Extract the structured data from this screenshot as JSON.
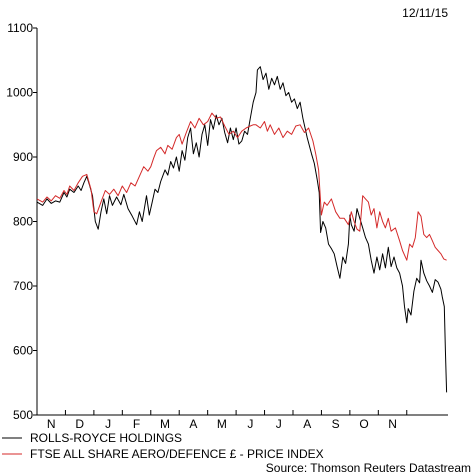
{
  "chart_data": {
    "type": "line",
    "date_label": "12/11/15",
    "source": "Source: Thomson Reuters Datastream",
    "x_tick_labels": [
      "N",
      "D",
      "J",
      "F",
      "M",
      "A",
      "M",
      "J",
      "J",
      "A",
      "S",
      "O",
      "N"
    ],
    "y_ticks": [
      500,
      600,
      700,
      800,
      900,
      1000,
      1100
    ],
    "ylim": [
      500,
      1100
    ],
    "grid": false,
    "legend_position": "bottom-left",
    "series": [
      {
        "name": "ROLLS-ROYCE HOLDINGS",
        "color": "#000000",
        "values": [
          [
            0.0,
            830
          ],
          [
            0.2,
            825
          ],
          [
            0.35,
            835
          ],
          [
            0.5,
            828
          ],
          [
            0.65,
            832
          ],
          [
            0.8,
            830
          ],
          [
            0.95,
            845
          ],
          [
            1.05,
            838
          ],
          [
            1.15,
            850
          ],
          [
            1.3,
            845
          ],
          [
            1.45,
            855
          ],
          [
            1.55,
            848
          ],
          [
            1.65,
            860
          ],
          [
            1.75,
            870
          ],
          [
            1.85,
            856
          ],
          [
            1.95,
            840
          ],
          [
            2.05,
            800
          ],
          [
            2.15,
            788
          ],
          [
            2.25,
            815
          ],
          [
            2.35,
            835
          ],
          [
            2.45,
            812
          ],
          [
            2.55,
            840
          ],
          [
            2.65,
            825
          ],
          [
            2.8,
            838
          ],
          [
            2.95,
            826
          ],
          [
            3.05,
            842
          ],
          [
            3.2,
            820
          ],
          [
            3.35,
            808
          ],
          [
            3.5,
            795
          ],
          [
            3.6,
            815
          ],
          [
            3.7,
            800
          ],
          [
            3.85,
            840
          ],
          [
            3.95,
            810
          ],
          [
            4.05,
            830
          ],
          [
            4.15,
            850
          ],
          [
            4.25,
            845
          ],
          [
            4.35,
            862
          ],
          [
            4.5,
            880
          ],
          [
            4.6,
            872
          ],
          [
            4.7,
            893
          ],
          [
            4.8,
            883
          ],
          [
            4.9,
            900
          ],
          [
            5.0,
            878
          ],
          [
            5.1,
            910
          ],
          [
            5.2,
            895
          ],
          [
            5.3,
            930
          ],
          [
            5.4,
            945
          ],
          [
            5.5,
            905
          ],
          [
            5.6,
            922
          ],
          [
            5.7,
            900
          ],
          [
            5.8,
            935
          ],
          [
            5.9,
            950
          ],
          [
            6.0,
            918
          ],
          [
            6.1,
            958
          ],
          [
            6.2,
            943
          ],
          [
            6.3,
            965
          ],
          [
            6.4,
            950
          ],
          [
            6.5,
            960
          ],
          [
            6.6,
            938
          ],
          [
            6.7,
            922
          ],
          [
            6.8,
            945
          ],
          [
            6.9,
            927
          ],
          [
            7.0,
            945
          ],
          [
            7.1,
            920
          ],
          [
            7.2,
            925
          ],
          [
            7.3,
            940
          ],
          [
            7.4,
            935
          ],
          [
            7.5,
            960
          ],
          [
            7.6,
            985
          ],
          [
            7.7,
            1000
          ],
          [
            7.75,
            1035
          ],
          [
            7.85,
            1040
          ],
          [
            7.95,
            1020
          ],
          [
            8.05,
            1030
          ],
          [
            8.15,
            1005
          ],
          [
            8.25,
            1022
          ],
          [
            8.35,
            1012
          ],
          [
            8.45,
            1025
          ],
          [
            8.55,
            1005
          ],
          [
            8.65,
            1015
          ],
          [
            8.75,
            995
          ],
          [
            8.85,
            1000
          ],
          [
            8.95,
            985
          ],
          [
            9.05,
            990
          ],
          [
            9.15,
            975
          ],
          [
            9.25,
            985
          ],
          [
            9.35,
            960
          ],
          [
            9.5,
            930
          ],
          [
            9.65,
            905
          ],
          [
            9.75,
            890
          ],
          [
            9.85,
            865
          ],
          [
            9.92,
            845
          ],
          [
            9.97,
            783
          ],
          [
            10.05,
            800
          ],
          [
            10.15,
            790
          ],
          [
            10.25,
            765
          ],
          [
            10.35,
            758
          ],
          [
            10.45,
            750
          ],
          [
            10.55,
            730
          ],
          [
            10.65,
            712
          ],
          [
            10.75,
            745
          ],
          [
            10.85,
            735
          ],
          [
            10.95,
            765
          ],
          [
            11.0,
            810
          ],
          [
            11.05,
            795
          ],
          [
            11.15,
            785
          ],
          [
            11.25,
            820
          ],
          [
            11.35,
            805
          ],
          [
            11.45,
            790
          ],
          [
            11.55,
            775
          ],
          [
            11.65,
            765
          ],
          [
            11.75,
            740
          ],
          [
            11.85,
            720
          ],
          [
            11.95,
            745
          ],
          [
            12.05,
            725
          ],
          [
            12.15,
            750
          ],
          [
            12.25,
            728
          ],
          [
            12.35,
            760
          ],
          [
            12.45,
            730
          ],
          [
            12.55,
            745
          ],
          [
            12.65,
            728
          ],
          [
            12.75,
            720
          ],
          [
            12.85,
            700
          ],
          [
            12.92,
            668
          ],
          [
            13.0,
            643
          ],
          [
            13.05,
            665
          ],
          [
            13.15,
            655
          ],
          [
            13.25,
            692
          ],
          [
            13.35,
            712
          ],
          [
            13.45,
            705
          ],
          [
            13.5,
            740
          ],
          [
            13.6,
            720
          ],
          [
            13.7,
            708
          ],
          [
            13.8,
            700
          ],
          [
            13.9,
            690
          ],
          [
            14.0,
            710
          ],
          [
            14.1,
            706
          ],
          [
            14.2,
            695
          ],
          [
            14.25,
            683
          ],
          [
            14.32,
            668
          ],
          [
            14.36,
            600
          ],
          [
            14.4,
            535
          ]
        ]
      },
      {
        "name": "FTSE ALL SHARE AERO/DEFENCE £ - PRICE INDEX",
        "color": "#d42a2a",
        "values": [
          [
            0.0,
            835
          ],
          [
            0.2,
            830
          ],
          [
            0.35,
            838
          ],
          [
            0.5,
            832
          ],
          [
            0.65,
            840
          ],
          [
            0.8,
            836
          ],
          [
            0.95,
            848
          ],
          [
            1.05,
            842
          ],
          [
            1.15,
            855
          ],
          [
            1.3,
            848
          ],
          [
            1.45,
            860
          ],
          [
            1.6,
            870
          ],
          [
            1.75,
            873
          ],
          [
            1.9,
            850
          ],
          [
            2.0,
            815
          ],
          [
            2.1,
            812
          ],
          [
            2.25,
            830
          ],
          [
            2.4,
            848
          ],
          [
            2.55,
            842
          ],
          [
            2.7,
            850
          ],
          [
            2.85,
            840
          ],
          [
            3.0,
            855
          ],
          [
            3.15,
            845
          ],
          [
            3.3,
            860
          ],
          [
            3.45,
            855
          ],
          [
            3.6,
            870
          ],
          [
            3.75,
            885
          ],
          [
            3.9,
            878
          ],
          [
            4.0,
            885
          ],
          [
            4.1,
            898
          ],
          [
            4.2,
            910
          ],
          [
            4.35,
            915
          ],
          [
            4.5,
            905
          ],
          [
            4.6,
            918
          ],
          [
            4.75,
            912
          ],
          [
            4.9,
            930
          ],
          [
            5.0,
            935
          ],
          [
            5.1,
            920
          ],
          [
            5.25,
            938
          ],
          [
            5.4,
            955
          ],
          [
            5.55,
            945
          ],
          [
            5.7,
            960
          ],
          [
            5.85,
            950
          ],
          [
            6.0,
            955
          ],
          [
            6.15,
            968
          ],
          [
            6.3,
            960
          ],
          [
            6.45,
            962
          ],
          [
            6.6,
            948
          ],
          [
            6.75,
            935
          ],
          [
            6.9,
            940
          ],
          [
            7.05,
            930
          ],
          [
            7.2,
            940
          ],
          [
            7.35,
            945
          ],
          [
            7.5,
            948
          ],
          [
            7.6,
            950
          ],
          [
            7.7,
            950
          ],
          [
            7.85,
            945
          ],
          [
            8.0,
            955
          ],
          [
            8.1,
            940
          ],
          [
            8.2,
            950
          ],
          [
            8.35,
            935
          ],
          [
            8.5,
            945
          ],
          [
            8.65,
            930
          ],
          [
            8.8,
            940
          ],
          [
            8.95,
            935
          ],
          [
            9.1,
            948
          ],
          [
            9.25,
            950
          ],
          [
            9.4,
            938
          ],
          [
            9.55,
            945
          ],
          [
            9.7,
            925
          ],
          [
            9.8,
            905
          ],
          [
            9.9,
            880
          ],
          [
            10.0,
            810
          ],
          [
            10.1,
            830
          ],
          [
            10.2,
            825
          ],
          [
            10.35,
            835
          ],
          [
            10.5,
            815
          ],
          [
            10.65,
            805
          ],
          [
            10.8,
            805
          ],
          [
            10.95,
            795
          ],
          [
            11.05,
            815
          ],
          [
            11.15,
            800
          ],
          [
            11.25,
            788
          ],
          [
            11.35,
            785
          ],
          [
            11.45,
            840
          ],
          [
            11.55,
            835
          ],
          [
            11.65,
            830
          ],
          [
            11.75,
            810
          ],
          [
            11.85,
            820
          ],
          [
            11.95,
            790
          ],
          [
            12.05,
            815
          ],
          [
            12.15,
            800
          ],
          [
            12.25,
            790
          ],
          [
            12.35,
            805
          ],
          [
            12.45,
            785
          ],
          [
            12.6,
            790
          ],
          [
            12.75,
            770
          ],
          [
            12.85,
            755
          ],
          [
            13.0,
            740
          ],
          [
            13.1,
            765
          ],
          [
            13.2,
            760
          ],
          [
            13.3,
            775
          ],
          [
            13.4,
            815
          ],
          [
            13.5,
            808
          ],
          [
            13.6,
            780
          ],
          [
            13.7,
            775
          ],
          [
            13.8,
            780
          ],
          [
            13.9,
            770
          ],
          [
            14.0,
            760
          ],
          [
            14.1,
            755
          ],
          [
            14.2,
            750
          ],
          [
            14.3,
            742
          ],
          [
            14.4,
            740
          ]
        ]
      }
    ]
  }
}
